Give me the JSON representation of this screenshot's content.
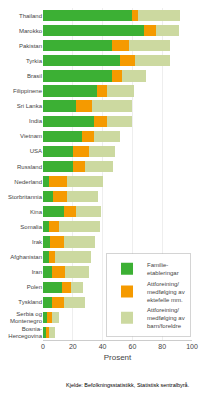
{
  "chart_data": {
    "type": "bar",
    "orientation": "horizontal",
    "stacked": true,
    "categories": [
      "Thailand",
      "Marokko",
      "Pakistan",
      "Tyrkia",
      "Brasil",
      "Filippinene",
      "Sri Lanka",
      "India",
      "Vietnam",
      "USA",
      "Russland",
      "Nederland",
      "Storbritannia",
      "Kina",
      "Somalia",
      "Irak",
      "Afghanistan",
      "Iran",
      "Polen",
      "Tyskland",
      "Serbia og\nMontenegro",
      "Bosnia-\nHercegovina"
    ],
    "series": [
      {
        "name": "Familie-\netableringar",
        "color": "#3cb034",
        "values": [
          60,
          68,
          46,
          52,
          46,
          36,
          22,
          34,
          26,
          20,
          20,
          4,
          7,
          14,
          4,
          5,
          4,
          6,
          13,
          6,
          3,
          2
        ]
      },
      {
        "name": "Attforeining/\nmedfølging av\nektefelle mm.",
        "color": "#f59a00",
        "values": [
          4,
          8,
          12,
          10,
          7,
          7,
          11,
          9,
          8,
          11,
          8,
          12,
          9,
          8,
          7,
          9,
          4,
          9,
          6,
          8,
          3,
          2
        ]
      },
      {
        "name": "Attforeining/\nmedfølging av\nbarn/foreldre",
        "color": "#ccd9a0",
        "values": [
          28,
          15,
          27,
          23,
          16,
          18,
          27,
          17,
          18,
          17,
          19,
          24,
          21,
          17,
          27,
          21,
          24,
          16,
          8,
          14,
          5,
          4
        ]
      }
    ],
    "xlabel": "Prosent",
    "xlim": [
      0,
      100
    ],
    "xticks": [
      0,
      20,
      40,
      60,
      80,
      100
    ],
    "grid": true,
    "legend": "lower right",
    "annotations": [
      "Kjelde: Befolkningsstatistikk, Statistisk sentralbyrå."
    ]
  }
}
